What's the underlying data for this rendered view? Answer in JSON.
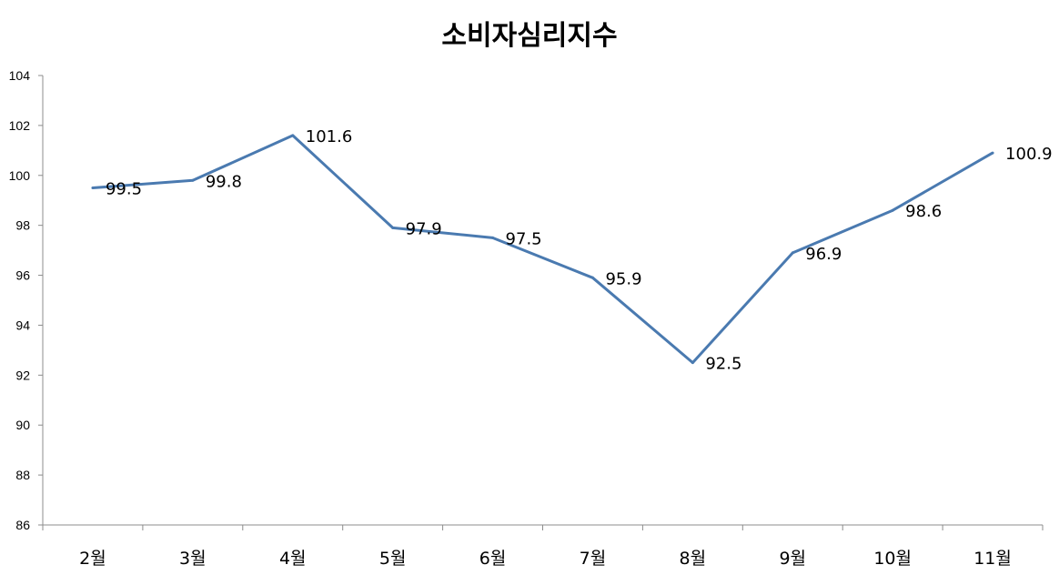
{
  "chart_data": {
    "type": "line",
    "title": "소비자심리지수",
    "xlabel": "",
    "ylabel": "",
    "categories": [
      "2월",
      "3월",
      "4월",
      "5월",
      "6월",
      "7월",
      "8월",
      "9월",
      "10월",
      "11월"
    ],
    "series": [
      {
        "values": [
          99.5,
          99.8,
          101.6,
          97.9,
          97.5,
          95.9,
          92.5,
          96.9,
          98.6,
          100.9
        ],
        "labels": [
          "99.5",
          "99.8",
          "101.6",
          "97.9",
          "97.5",
          "95.9",
          "92.5",
          "96.9",
          "98.6",
          "100.9"
        ]
      }
    ],
    "ylim": [
      86,
      104
    ],
    "yticks": [
      "86",
      "88",
      "90",
      "92",
      "94",
      "96",
      "98",
      "100",
      "102",
      "104"
    ],
    "grid": false,
    "legend": "none",
    "colors": {
      "line": "#4a7ab0",
      "axis": "#8c8c8c"
    }
  }
}
